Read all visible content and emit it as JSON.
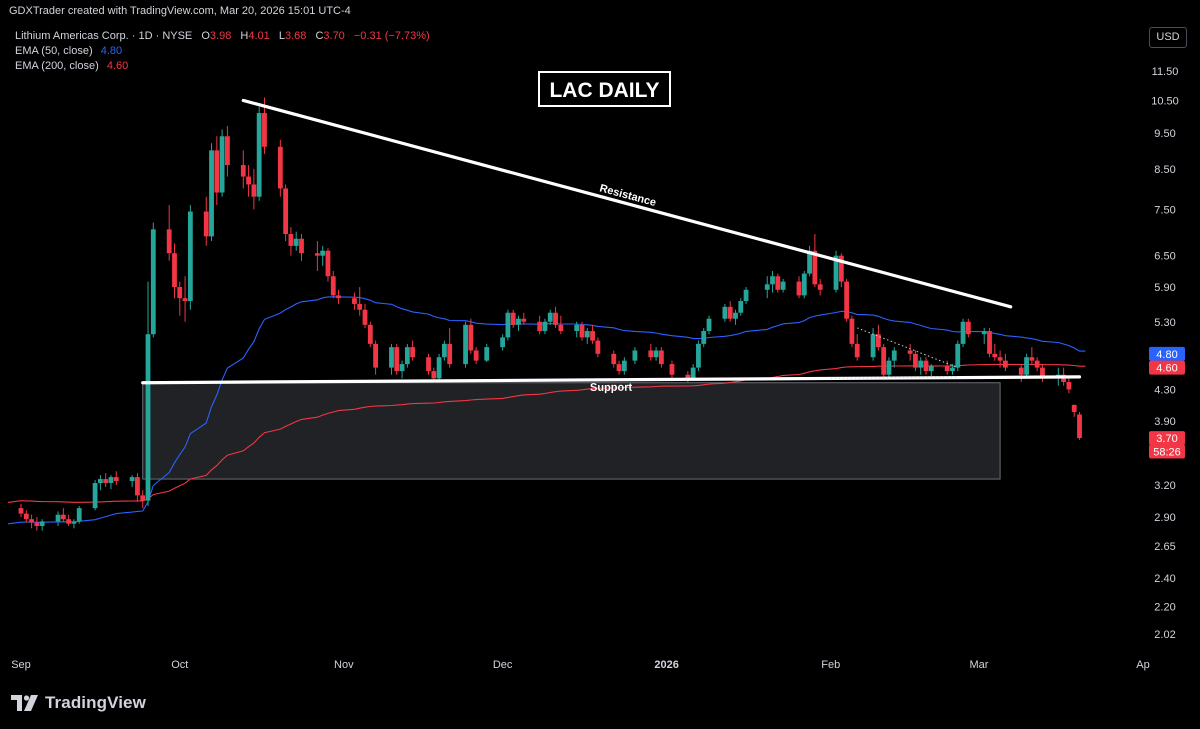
{
  "header": {
    "credit": "GDXTrader created with TradingView.com, Mar 20, 2026 15:01 UTC-4",
    "symbol": "Lithium Americas Corp. · 1D · NYSE",
    "ohlc": {
      "o_label": "O",
      "o_value": "3.98",
      "h_label": "H",
      "h_value": "4.01",
      "l_label": "L",
      "l_value": "3.68",
      "c_label": "C",
      "c_value": "3.70",
      "change": "−0.31 (−7.73%)"
    },
    "indicators": [
      {
        "label": "EMA (50, close)",
        "value": "4.80",
        "color": "#2962ff"
      },
      {
        "label": "EMA (200, close)",
        "value": "4.60",
        "color": "#f23645"
      }
    ],
    "currency": "USD"
  },
  "footer": {
    "brand": "TradingView"
  },
  "colors": {
    "up": "#26a69a",
    "down": "#f23645",
    "ema50": "#2962ff",
    "ema200": "#f23645",
    "grid": "#000000",
    "text": "#d1d4dc"
  },
  "chart_data": {
    "type": "candlestick",
    "title": "LAC DAILY",
    "scale": "log",
    "ylim": [
      1.85,
      12.5
    ],
    "y_ticks": [
      "11.50",
      "10.50",
      "9.50",
      "8.50",
      "7.50",
      "6.50",
      "5.90",
      "5.30",
      "4.30",
      "3.90",
      "3.20",
      "2.90",
      "2.65",
      "2.40",
      "2.20",
      "2.02"
    ],
    "x_tick_labels": [
      "Sep",
      "Oct",
      "Nov",
      "Dec",
      "2026",
      "Feb",
      "Mar",
      "Ap"
    ],
    "x_tick_dates": [
      "2025-09-01",
      "2025-10-01",
      "2025-11-01",
      "2025-12-01",
      "2026-01-01",
      "2026-02-01",
      "2026-03-01",
      "2026-04-01"
    ],
    "annotations": [
      {
        "type": "trendline",
        "label": "Resistance",
        "from": [
          "2025-10-13",
          10.5
        ],
        "to": [
          "2026-03-07",
          5.55
        ]
      },
      {
        "type": "trendline",
        "label": "Support",
        "from": [
          "2025-09-24",
          4.39
        ],
        "to": [
          "2026-03-20",
          4.47
        ]
      },
      {
        "type": "rectangle",
        "from": [
          "2025-09-24",
          4.39
        ],
        "to": [
          "2026-03-05",
          3.26
        ]
      },
      {
        "type": "dotted",
        "from": [
          "2026-02-06",
          5.2
        ],
        "to": [
          "2026-02-25",
          4.6
        ]
      },
      {
        "type": "dotted",
        "from": [
          "2026-02-01",
          4.45
        ],
        "to": [
          "2026-02-25",
          4.47
        ]
      }
    ],
    "price_labels": [
      {
        "text": "4.80",
        "value": 4.8,
        "color": "#2962ff"
      },
      {
        "text": "4.60",
        "value": 4.6,
        "color": "#f23645"
      },
      {
        "text": "3.70",
        "value": 3.7,
        "color": "#f23645"
      },
      {
        "text": "58:26",
        "value": 3.55,
        "color": "#f23645"
      }
    ],
    "candles": [
      [
        "2025-09-01",
        2.98,
        3.02,
        2.9,
        2.93
      ],
      [
        "2025-09-02",
        2.93,
        2.96,
        2.85,
        2.88
      ],
      [
        "2025-09-03",
        2.88,
        2.92,
        2.8,
        2.85
      ],
      [
        "2025-09-04",
        2.85,
        2.9,
        2.78,
        2.82
      ],
      [
        "2025-09-05",
        2.82,
        2.88,
        2.78,
        2.86
      ],
      [
        "2025-09-08",
        2.86,
        2.95,
        2.82,
        2.92
      ],
      [
        "2025-09-09",
        2.92,
        2.98,
        2.86,
        2.88
      ],
      [
        "2025-09-10",
        2.88,
        2.92,
        2.82,
        2.84
      ],
      [
        "2025-09-11",
        2.84,
        2.88,
        2.8,
        2.86
      ],
      [
        "2025-09-12",
        2.86,
        3.0,
        2.84,
        2.98
      ],
      [
        "2025-09-15",
        2.98,
        3.25,
        2.96,
        3.22
      ],
      [
        "2025-09-16",
        3.22,
        3.3,
        3.15,
        3.26
      ],
      [
        "2025-09-17",
        3.26,
        3.32,
        3.18,
        3.22
      ],
      [
        "2025-09-18",
        3.22,
        3.3,
        3.16,
        3.28
      ],
      [
        "2025-09-19",
        3.28,
        3.34,
        3.2,
        3.24
      ],
      [
        "2025-09-22",
        3.24,
        3.3,
        3.18,
        3.28
      ],
      [
        "2025-09-23",
        3.28,
        3.32,
        3.04,
        3.1
      ],
      [
        "2025-09-24",
        3.1,
        3.15,
        2.98,
        3.05
      ],
      [
        "2025-09-25",
        3.05,
        6.0,
        3.0,
        5.1
      ],
      [
        "2025-09-26",
        5.1,
        7.2,
        5.05,
        7.05
      ],
      [
        "2025-09-29",
        7.05,
        7.6,
        6.4,
        6.55
      ],
      [
        "2025-09-30",
        6.55,
        6.75,
        5.7,
        5.9
      ],
      [
        "2025-10-01",
        5.9,
        6.0,
        5.4,
        5.7
      ],
      [
        "2025-10-02",
        5.7,
        6.1,
        5.3,
        5.65
      ],
      [
        "2025-10-03",
        5.65,
        7.6,
        5.5,
        7.45
      ],
      [
        "2025-10-06",
        7.45,
        7.8,
        6.7,
        6.9
      ],
      [
        "2025-10-07",
        6.9,
        9.2,
        6.8,
        9.0
      ],
      [
        "2025-10-08",
        9.0,
        9.4,
        7.6,
        7.9
      ],
      [
        "2025-10-09",
        7.9,
        9.6,
        7.8,
        9.4
      ],
      [
        "2025-10-10",
        9.4,
        9.7,
        8.3,
        8.6
      ],
      [
        "2025-10-13",
        8.6,
        9.0,
        8.0,
        8.3
      ],
      [
        "2025-10-14",
        8.3,
        8.6,
        7.8,
        8.1
      ],
      [
        "2025-10-15",
        8.1,
        8.5,
        7.5,
        7.8
      ],
      [
        "2025-10-16",
        7.8,
        10.3,
        7.7,
        10.1
      ],
      [
        "2025-10-17",
        10.1,
        10.6,
        8.9,
        9.1
      ],
      [
        "2025-10-20",
        9.1,
        9.3,
        7.8,
        8.0
      ],
      [
        "2025-10-21",
        8.0,
        8.1,
        6.8,
        6.95
      ],
      [
        "2025-10-22",
        6.95,
        7.1,
        6.5,
        6.7
      ],
      [
        "2025-10-23",
        6.7,
        7.0,
        6.6,
        6.85
      ],
      [
        "2025-10-24",
        6.85,
        6.95,
        6.4,
        6.55
      ],
      [
        "2025-10-27",
        6.55,
        6.8,
        6.2,
        6.5
      ],
      [
        "2025-10-28",
        6.5,
        6.7,
        6.3,
        6.6
      ],
      [
        "2025-10-29",
        6.6,
        6.65,
        6.0,
        6.1
      ],
      [
        "2025-10-30",
        6.1,
        6.2,
        5.7,
        5.75
      ],
      [
        "2025-10-31",
        5.75,
        5.85,
        5.6,
        5.7
      ],
      [
        "2025-11-03",
        5.7,
        5.8,
        5.5,
        5.6
      ],
      [
        "2025-11-04",
        5.6,
        5.9,
        5.4,
        5.5
      ],
      [
        "2025-11-05",
        5.5,
        5.6,
        5.2,
        5.25
      ],
      [
        "2025-11-06",
        5.25,
        5.3,
        4.9,
        4.95
      ],
      [
        "2025-11-07",
        4.95,
        5.0,
        4.5,
        4.6
      ],
      [
        "2025-11-10",
        4.6,
        4.95,
        4.5,
        4.9
      ],
      [
        "2025-11-11",
        4.9,
        4.95,
        4.5,
        4.55
      ],
      [
        "2025-11-12",
        4.55,
        4.7,
        4.45,
        4.65
      ],
      [
        "2025-11-13",
        4.65,
        4.95,
        4.6,
        4.9
      ],
      [
        "2025-11-14",
        4.9,
        5.0,
        4.7,
        4.75
      ],
      [
        "2025-11-17",
        4.75,
        4.8,
        4.5,
        4.55
      ],
      [
        "2025-11-18",
        4.55,
        4.6,
        4.4,
        4.45
      ],
      [
        "2025-11-19",
        4.45,
        4.8,
        4.4,
        4.75
      ],
      [
        "2025-11-20",
        4.75,
        5.0,
        4.7,
        4.95
      ],
      [
        "2025-11-21",
        4.95,
        5.2,
        4.6,
        4.65
      ],
      [
        "2025-11-24",
        4.65,
        5.3,
        4.6,
        5.25
      ],
      [
        "2025-11-25",
        5.25,
        5.35,
        4.8,
        4.85
      ],
      [
        "2025-11-26",
        4.85,
        4.9,
        4.65,
        4.7
      ],
      [
        "2025-11-28",
        4.7,
        4.95,
        4.68,
        4.9
      ],
      [
        "2025-12-01",
        4.9,
        5.1,
        4.85,
        5.05
      ],
      [
        "2025-12-02",
        5.05,
        5.5,
        5.0,
        5.45
      ],
      [
        "2025-12-03",
        5.45,
        5.5,
        5.2,
        5.25
      ],
      [
        "2025-12-04",
        5.25,
        5.4,
        5.15,
        5.35
      ],
      [
        "2025-12-05",
        5.35,
        5.45,
        5.25,
        5.3
      ],
      [
        "2025-12-08",
        5.3,
        5.4,
        5.1,
        5.15
      ],
      [
        "2025-12-09",
        5.15,
        5.35,
        5.1,
        5.3
      ],
      [
        "2025-12-10",
        5.3,
        5.5,
        5.25,
        5.45
      ],
      [
        "2025-12-11",
        5.45,
        5.55,
        5.2,
        5.25
      ],
      [
        "2025-12-12",
        5.25,
        5.4,
        5.1,
        5.15
      ],
      [
        "2025-12-15",
        5.15,
        5.3,
        5.05,
        5.25
      ],
      [
        "2025-12-16",
        5.25,
        5.3,
        5.0,
        5.05
      ],
      [
        "2025-12-17",
        5.05,
        5.2,
        4.95,
        5.15
      ],
      [
        "2025-12-18",
        5.15,
        5.25,
        4.95,
        5.0
      ],
      [
        "2025-12-19",
        5.0,
        5.05,
        4.75,
        4.8
      ],
      [
        "2025-12-22",
        4.8,
        4.85,
        4.6,
        4.65
      ],
      [
        "2025-12-23",
        4.65,
        4.7,
        4.5,
        4.55
      ],
      [
        "2025-12-24",
        4.55,
        4.75,
        4.5,
        4.7
      ],
      [
        "2025-12-26",
        4.7,
        4.9,
        4.65,
        4.85
      ],
      [
        "2025-12-29",
        4.85,
        4.95,
        4.7,
        4.75
      ],
      [
        "2025-12-30",
        4.75,
        4.9,
        4.7,
        4.85
      ],
      [
        "2025-12-31",
        4.85,
        4.9,
        4.6,
        4.65
      ],
      [
        "2026-01-02",
        4.65,
        4.7,
        4.45,
        4.5
      ],
      [
        "2026-01-05",
        4.5,
        4.55,
        4.4,
        4.45
      ],
      [
        "2026-01-06",
        4.45,
        4.65,
        4.42,
        4.6
      ],
      [
        "2026-01-07",
        4.6,
        5.0,
        4.55,
        4.95
      ],
      [
        "2026-01-08",
        4.95,
        5.2,
        4.9,
        5.15
      ],
      [
        "2026-01-09",
        5.15,
        5.4,
        5.1,
        5.35
      ],
      [
        "2026-01-12",
        5.35,
        5.6,
        5.3,
        5.55
      ],
      [
        "2026-01-13",
        5.55,
        5.65,
        5.3,
        5.35
      ],
      [
        "2026-01-14",
        5.35,
        5.5,
        5.25,
        5.45
      ],
      [
        "2026-01-15",
        5.45,
        5.7,
        5.4,
        5.65
      ],
      [
        "2026-01-16",
        5.65,
        5.9,
        5.6,
        5.85
      ],
      [
        "2026-01-20",
        5.85,
        6.1,
        5.7,
        5.95
      ],
      [
        "2026-01-21",
        5.95,
        6.2,
        5.8,
        6.1
      ],
      [
        "2026-01-22",
        6.1,
        6.15,
        5.8,
        5.85
      ],
      [
        "2026-01-23",
        5.85,
        6.05,
        5.8,
        6.0
      ],
      [
        "2026-01-26",
        6.0,
        6.1,
        5.7,
        5.75
      ],
      [
        "2026-01-27",
        5.75,
        6.2,
        5.7,
        6.15
      ],
      [
        "2026-01-28",
        6.15,
        6.7,
        6.1,
        6.6
      ],
      [
        "2026-01-29",
        6.6,
        6.95,
        5.9,
        5.95
      ],
      [
        "2026-01-30",
        5.95,
        6.05,
        5.75,
        5.85
      ],
      [
        "2026-02-02",
        5.85,
        6.6,
        5.8,
        6.5
      ],
      [
        "2026-02-03",
        6.5,
        6.55,
        5.9,
        6.0
      ],
      [
        "2026-02-04",
        6.0,
        6.05,
        5.3,
        5.35
      ],
      [
        "2026-02-05",
        5.35,
        5.4,
        4.9,
        4.95
      ],
      [
        "2026-02-06",
        4.95,
        5.1,
        4.7,
        4.75
      ],
      [
        "2026-02-09",
        4.75,
        5.2,
        4.7,
        5.1
      ],
      [
        "2026-02-10",
        5.1,
        5.25,
        4.85,
        4.9
      ],
      [
        "2026-02-11",
        4.9,
        4.95,
        4.45,
        4.5
      ],
      [
        "2026-02-12",
        4.5,
        4.75,
        4.45,
        4.7
      ],
      [
        "2026-02-13",
        4.7,
        4.9,
        4.6,
        4.85
      ],
      [
        "2026-02-16",
        4.85,
        4.95,
        4.7,
        4.8
      ],
      [
        "2026-02-17",
        4.8,
        4.85,
        4.55,
        4.6
      ],
      [
        "2026-02-18",
        4.6,
        4.75,
        4.5,
        4.7
      ],
      [
        "2026-02-19",
        4.7,
        4.75,
        4.5,
        4.55
      ],
      [
        "2026-02-20",
        4.55,
        4.65,
        4.48,
        4.62
      ],
      [
        "2026-02-23",
        4.62,
        4.7,
        4.5,
        4.55
      ],
      [
        "2026-02-24",
        4.55,
        4.65,
        4.5,
        4.6
      ],
      [
        "2026-02-25",
        4.6,
        5.0,
        4.55,
        4.95
      ],
      [
        "2026-02-26",
        4.95,
        5.35,
        4.9,
        5.3
      ],
      [
        "2026-02-27",
        5.3,
        5.35,
        5.05,
        5.1
      ],
      [
        "2026-03-02",
        5.1,
        5.2,
        4.95,
        5.15
      ],
      [
        "2026-03-03",
        5.15,
        5.2,
        4.75,
        4.8
      ],
      [
        "2026-03-04",
        4.8,
        4.95,
        4.7,
        4.75
      ],
      [
        "2026-03-05",
        4.75,
        4.85,
        4.6,
        4.7
      ],
      [
        "2026-03-06",
        4.7,
        4.8,
        4.55,
        4.6
      ],
      [
        "2026-03-09",
        4.6,
        4.65,
        4.4,
        4.5
      ],
      [
        "2026-03-10",
        4.5,
        4.8,
        4.45,
        4.75
      ],
      [
        "2026-03-11",
        4.75,
        4.9,
        4.65,
        4.7
      ],
      [
        "2026-03-12",
        4.7,
        4.75,
        4.55,
        4.6
      ],
      [
        "2026-03-13",
        4.6,
        4.65,
        4.4,
        4.45
      ],
      [
        "2026-03-16",
        4.45,
        4.6,
        4.35,
        4.5
      ],
      [
        "2026-03-17",
        4.5,
        4.6,
        4.35,
        4.4
      ],
      [
        "2026-03-18",
        4.4,
        4.45,
        4.25,
        4.3
      ],
      [
        "2026-03-19",
        4.1,
        4.1,
        3.95,
        4.01
      ],
      [
        "2026-03-20",
        3.98,
        4.01,
        3.68,
        3.7
      ]
    ]
  }
}
